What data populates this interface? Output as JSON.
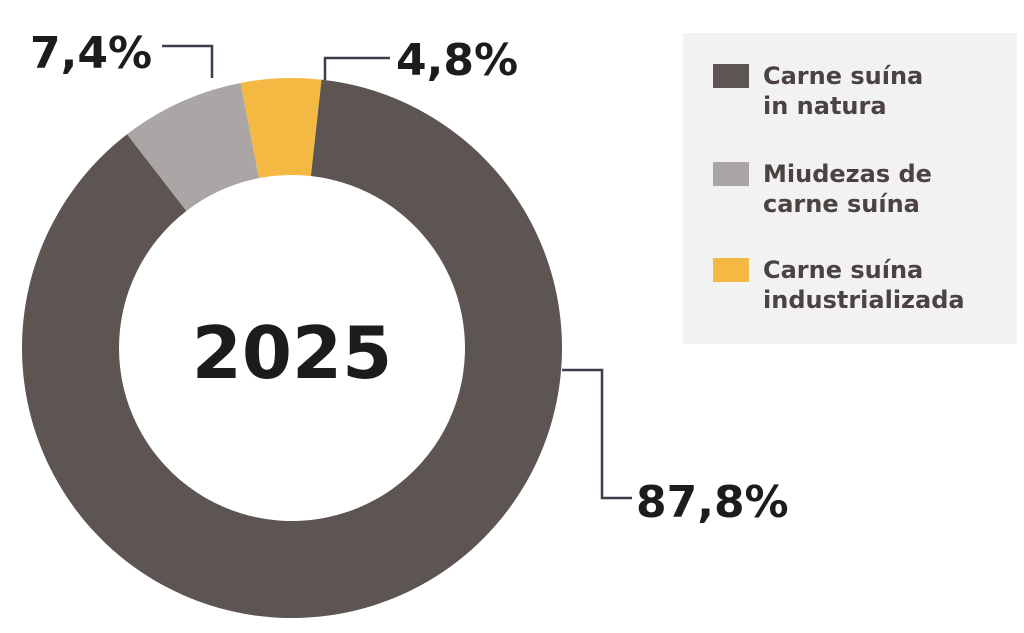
{
  "chart_data": {
    "type": "pie",
    "title": "2025",
    "categories": [
      "Carne suína\nin natura",
      "Miudezas de\ncarne suína",
      "Carne suína\nindustrializada"
    ],
    "values": [
      87.8,
      7.4,
      4.8
    ],
    "value_labels": [
      "87,8%",
      "7,4%",
      "4,8%"
    ],
    "colors": [
      "#5d5551",
      "#aba6a5",
      "#f4b942"
    ],
    "donut": true,
    "legend_position": "top-right"
  },
  "colors": {
    "label_text": "#1c1c1c",
    "leader_line": "#3c3e4d",
    "legend_bg": "#f3f2f2"
  }
}
